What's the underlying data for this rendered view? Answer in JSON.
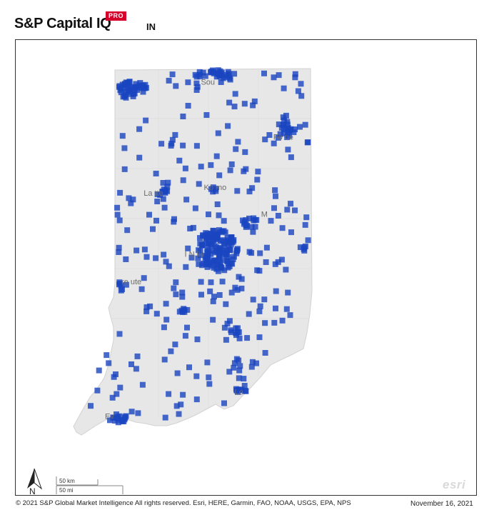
{
  "header": {
    "brand": "S&P Capital IQ",
    "badge": "PRO",
    "state": "IN"
  },
  "map": {
    "region": "Indiana",
    "marker_color": "#1a45c0",
    "state_fill": "#e7e7e7",
    "cities": [
      {
        "label": "South Bend",
        "shown": "Sou",
        "lon": -86.25,
        "lat": 41.68
      },
      {
        "label": "Fort Wayne",
        "shown": "Fo      ne",
        "lon": -85.14,
        "lat": 41.08
      },
      {
        "label": "Lafayette",
        "shown": "La      tte",
        "lon": -86.88,
        "lat": 40.42
      },
      {
        "label": "Kokomo",
        "shown": "Ko      mo",
        "lon": -86.13,
        "lat": 40.49
      },
      {
        "label": "Muncie",
        "shown": "M",
        "lon": -85.39,
        "lat": 40.19
      },
      {
        "label": "Indianapolis",
        "shown": "I N            lis",
        "lon": -86.16,
        "lat": 39.77
      },
      {
        "label": "Terre Haute",
        "shown": "re ute",
        "lon": -87.41,
        "lat": 39.47
      },
      {
        "label": "Louisville",
        "shown": "Lo",
        "lon": -85.76,
        "lat": 38.25
      },
      {
        "label": "Evansville",
        "shown": "Ev",
        "lon": -87.57,
        "lat": 37.97
      }
    ]
  },
  "scalebar": {
    "km_label": "50 km",
    "mi_label": "50 mi"
  },
  "north_label": "N",
  "esri_logo": "esri",
  "footer": {
    "copyright": "© 2021 S&P Global Market Intelligence All rights reserved. Esri, HERE, Garmin, FAO, NOAA, USGS, EPA, NPS",
    "date": "November 16, 2021"
  }
}
